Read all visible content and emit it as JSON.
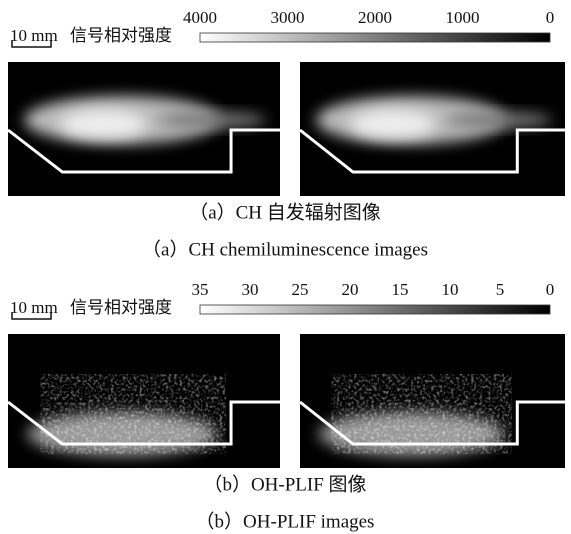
{
  "panels": [
    {
      "scale_bar": "10 mm",
      "colorbar_label": "信号相对强度",
      "colorbar_ticks": [
        4000,
        3000,
        2000,
        1000,
        0
      ],
      "caption_cn": "（a）CH 自发辐射图像",
      "caption_en": "（a）CH chemiluminescence images"
    },
    {
      "scale_bar": "10 mm",
      "colorbar_label": "信号相对强度",
      "colorbar_ticks": [
        35,
        30,
        25,
        20,
        15,
        10,
        5,
        0
      ],
      "caption_cn": "（b）OH-PLIF 图像",
      "caption_en": "（b）OH-PLIF images"
    }
  ]
}
